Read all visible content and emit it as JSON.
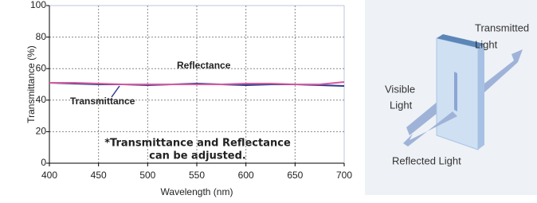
{
  "chart_data": {
    "type": "line",
    "x_label": "Wavelength (nm)",
    "y_label": "Transmittance (%)",
    "x": [
      400,
      425,
      450,
      475,
      500,
      525,
      550,
      575,
      600,
      625,
      650,
      675,
      700
    ],
    "series": [
      {
        "name": "Transmittance",
        "color": "#2b3a8c",
        "values": [
          51,
          50.5,
          50,
          50,
          49.5,
          50,
          50.5,
          50,
          49.5,
          50,
          50,
          49.5,
          49
        ]
      },
      {
        "name": "Reflectance",
        "color": "#d65a9e",
        "values": [
          51,
          51,
          50.5,
          50,
          50,
          50,
          50,
          50,
          50.5,
          50.5,
          50,
          50,
          51.5
        ]
      }
    ],
    "xlim": [
      400,
      700
    ],
    "xticks": [
      400,
      450,
      500,
      550,
      600,
      650,
      700
    ],
    "ylim": [
      0,
      100
    ],
    "yticks": [
      0,
      20,
      40,
      60,
      80,
      100
    ],
    "grid": true,
    "annotation": [
      "*Transmittance and Reflectance",
      "can be adjusted."
    ]
  },
  "diagram": {
    "transmitted": [
      "Transmitted",
      "Light"
    ],
    "visible": [
      "Visible",
      "Light"
    ],
    "reflected": "Reflected Light"
  }
}
